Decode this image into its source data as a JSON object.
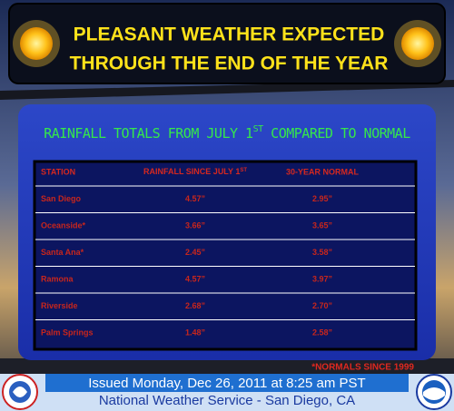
{
  "header": {
    "title_lines": [
      "PLEASANT WEATHER EXPECTED",
      "THROUGH THE END OF THE YEAR"
    ]
  },
  "table": {
    "title": [
      "RAINFALL TOTALS FROM JULY 1",
      "ST",
      " COMPARED TO NORMAL"
    ],
    "columns": [
      "STATION",
      [
        "RAINFALL SINCE JULY 1",
        "ST"
      ],
      "30-YEAR NORMAL"
    ],
    "rows": [
      [
        "San Diego",
        "4.57”",
        "2.95”"
      ],
      [
        "Oceanside*",
        "3.66”",
        "3.65”"
      ],
      [
        "Santa Ana*",
        "2.45”",
        "3.58”"
      ],
      [
        "Ramona",
        "4.57”",
        "3.97”"
      ],
      [
        "Riverside",
        "2.68”",
        "2.70”"
      ],
      [
        "Palm Springs",
        "1.48”",
        "2.58”"
      ]
    ],
    "footnote": "*NORMALS SINCE 1999"
  },
  "footer": {
    "issued": "Issued Monday, Dec 26, 2011 at 8:25 am PST",
    "office": "National Weather Service - San Diego, CA"
  }
}
